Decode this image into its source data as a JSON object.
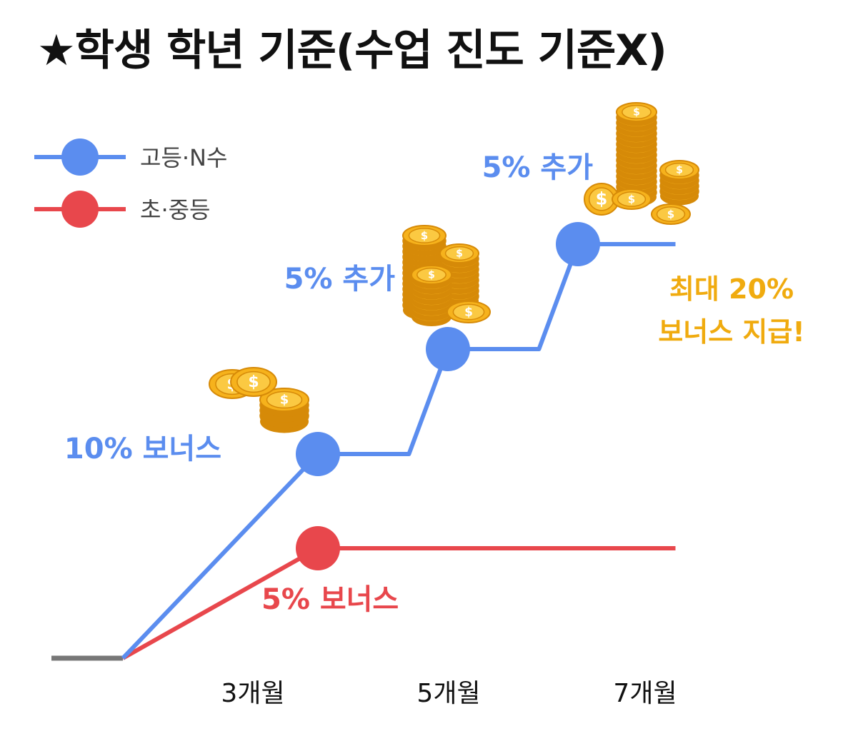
{
  "title": "★학생 학년 기준(수업 진도 기준X)",
  "colors": {
    "high_nsu": "#5b8def",
    "elem_mid": "#e8474c",
    "baseline": "#777777",
    "gold_label": "#f0ab0f",
    "coin": "#f6b21c",
    "coin_dark": "#d68a08"
  },
  "chart_data": {
    "type": "line",
    "x_tick_labels": [
      "3개월",
      "5개월",
      "7개월"
    ],
    "legend": [
      {
        "name": "고등·N수",
        "color": "#5b8def"
      },
      {
        "name": "초·중등",
        "color": "#e8474c"
      }
    ],
    "series": [
      {
        "name": "고등·N수",
        "points": [
          {
            "x": 0,
            "y": 0
          },
          {
            "x": 3,
            "y": 10
          },
          {
            "x": 4.4,
            "y": 10
          },
          {
            "x": 5,
            "y": 15
          },
          {
            "x": 6.4,
            "y": 15
          },
          {
            "x": 7,
            "y": 20
          },
          {
            "x": 8.5,
            "y": 20
          }
        ],
        "markers": [
          {
            "x": 3,
            "y": 10,
            "label": "10% 보너스"
          },
          {
            "x": 5,
            "y": 15,
            "label": "5% 추가"
          },
          {
            "x": 7,
            "y": 20,
            "label": "5% 추가"
          }
        ],
        "note": "최대 20%\n보너스 지급!"
      },
      {
        "name": "초·중등",
        "points": [
          {
            "x": 0,
            "y": 0
          },
          {
            "x": 3,
            "y": 5
          },
          {
            "x": 8.5,
            "y": 5
          }
        ],
        "markers": [
          {
            "x": 3,
            "y": 5,
            "label": "5% 보너스"
          }
        ]
      }
    ],
    "ylim": [
      0,
      20
    ]
  }
}
